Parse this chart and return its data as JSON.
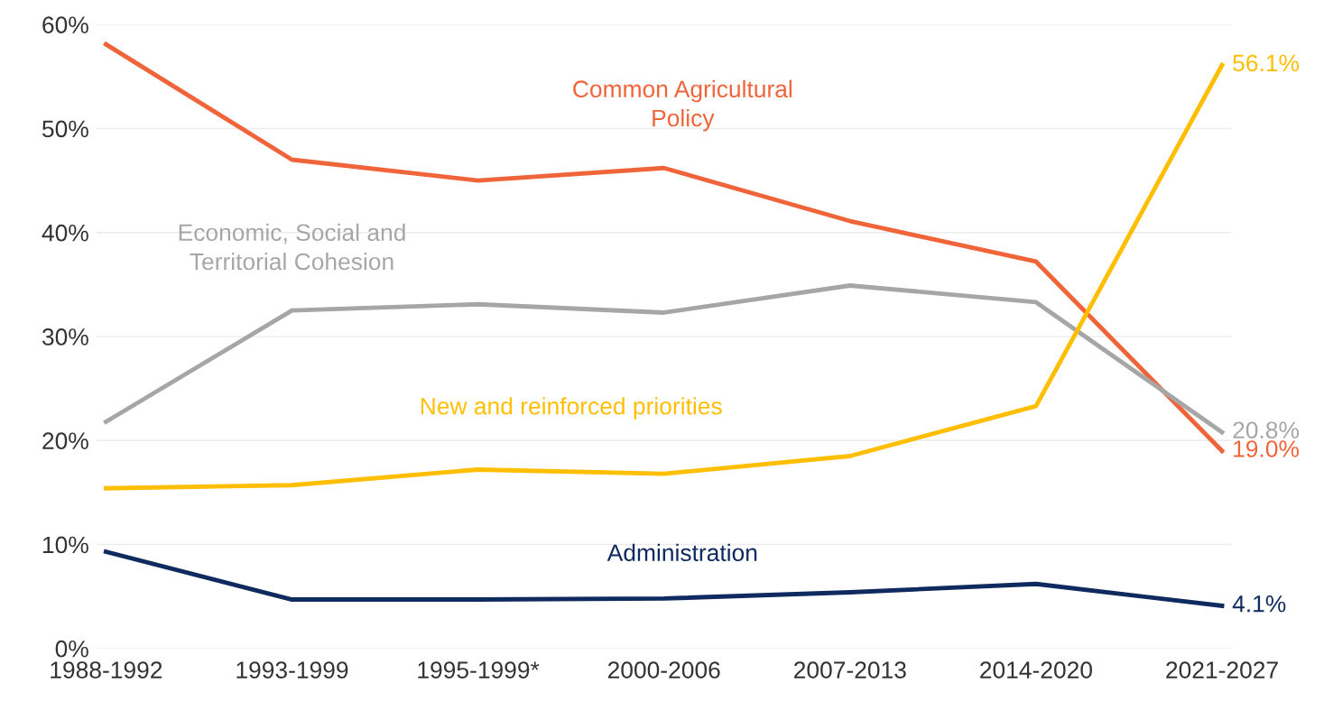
{
  "chart_data": {
    "type": "line",
    "categories": [
      "1988-1992",
      "1993-1999",
      "1995-1999*",
      "2000-2006",
      "2007-2013",
      "2014-2020",
      "2021-2027"
    ],
    "ylim": [
      0,
      60
    ],
    "yticks": [
      {
        "value": 0,
        "label": "0%"
      },
      {
        "value": 10,
        "label": "10%"
      },
      {
        "value": 20,
        "label": "20%"
      },
      {
        "value": 30,
        "label": "30%"
      },
      {
        "value": 40,
        "label": "40%"
      },
      {
        "value": 50,
        "label": "50%"
      },
      {
        "value": 60,
        "label": "60%"
      }
    ],
    "grid": "y",
    "legend": false,
    "marker": "none",
    "line_style": "solid",
    "series": [
      {
        "name": "Common Agricultural\nPolicy",
        "color": "#f0643a",
        "values": [
          58.1,
          47.0,
          45.0,
          46.2,
          41.1,
          37.2,
          19.0
        ],
        "value_labels": [
          null,
          null,
          null,
          null,
          null,
          null,
          "19.0%"
        ]
      },
      {
        "name": "Economic, Social and\nTerritorial Cohesion",
        "color": "#a6a6a6",
        "values": [
          21.8,
          32.5,
          33.1,
          32.3,
          34.9,
          33.3,
          20.8
        ],
        "value_labels": [
          null,
          null,
          null,
          null,
          null,
          null,
          "20.8%"
        ]
      },
      {
        "name": "New and reinforced priorities",
        "color": "#ffbe00",
        "values": [
          15.4,
          15.7,
          17.2,
          16.8,
          18.5,
          23.3,
          56.1
        ],
        "value_labels": [
          null,
          null,
          null,
          null,
          null,
          null,
          "56.1%"
        ]
      },
      {
        "name": "Administration",
        "color": "#0e2a5e",
        "values": [
          9.3,
          4.7,
          4.7,
          4.8,
          5.4,
          6.2,
          4.1
        ],
        "value_labels": [
          null,
          null,
          null,
          null,
          null,
          null,
          "4.1%"
        ]
      }
    ]
  }
}
